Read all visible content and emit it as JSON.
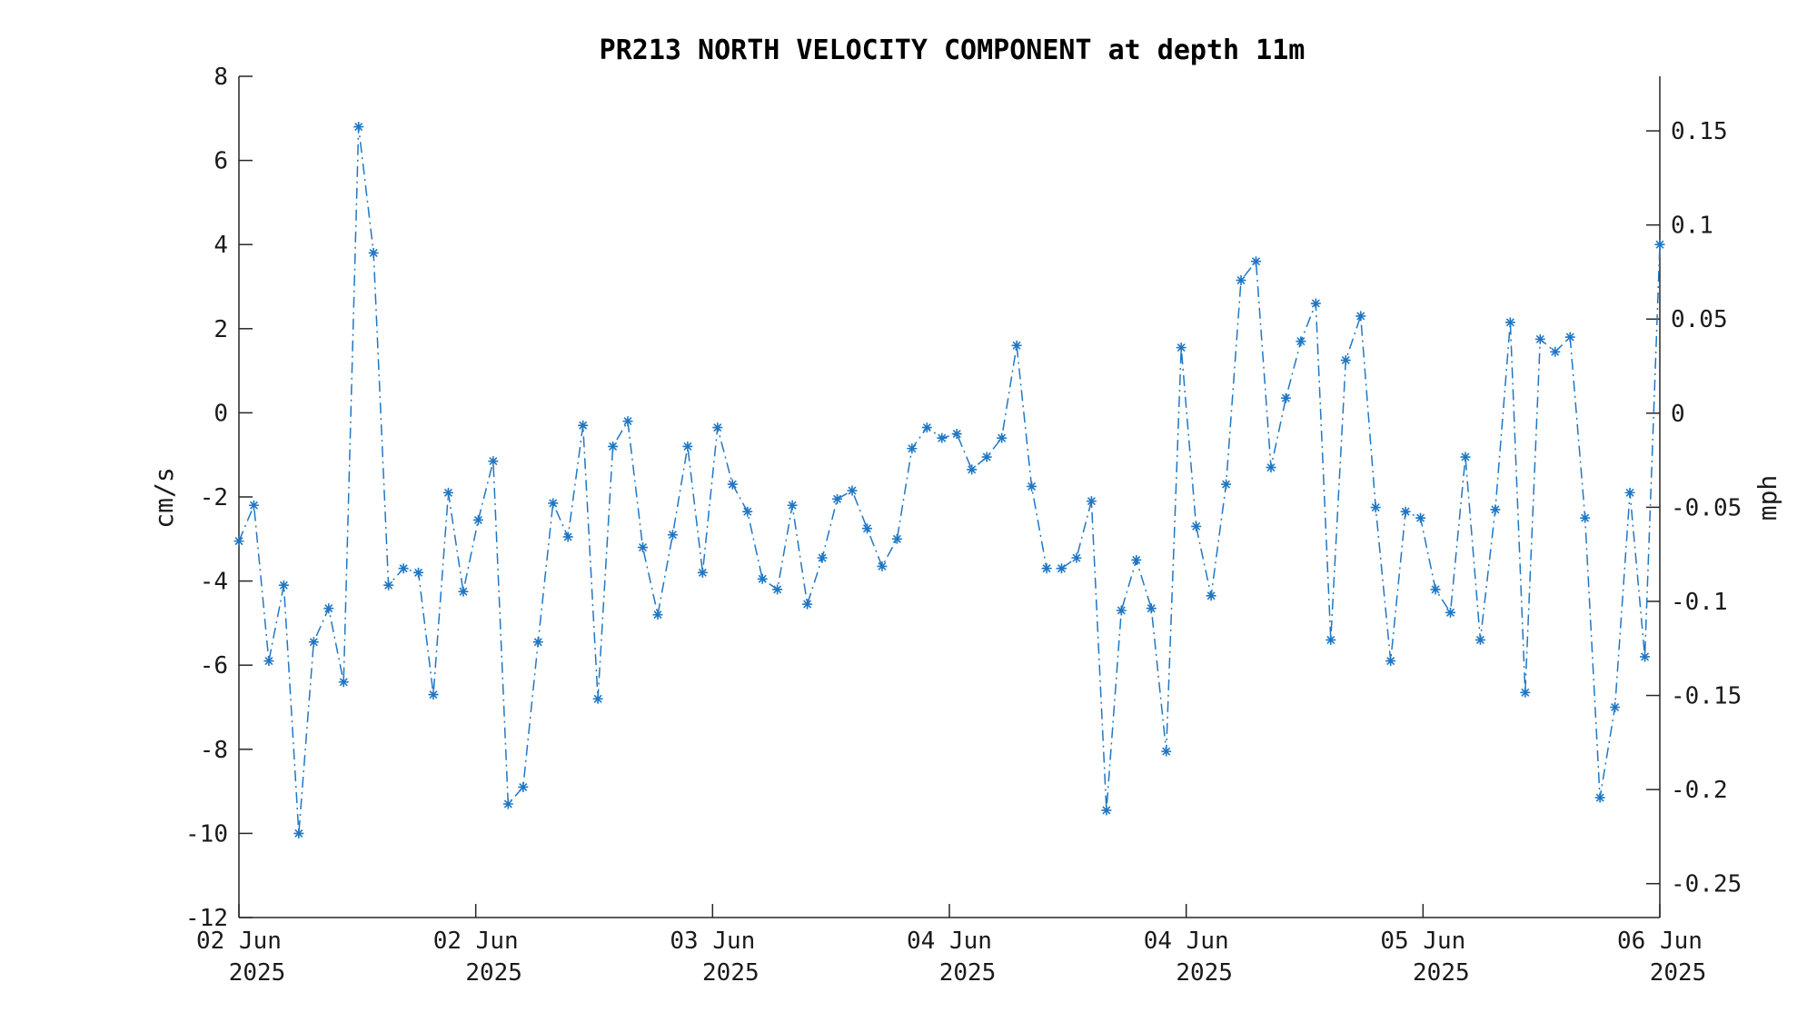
{
  "chart_data": {
    "type": "line",
    "title": "PR213 NORTH VELOCITY COMPONENT at depth 11m",
    "ylabel": "cm/s",
    "ylabel_right": "mph",
    "ylim": [
      -12,
      8
    ],
    "yticks": [
      "8",
      "6",
      "4",
      "2",
      "0",
      "-2",
      "-4",
      "-6",
      "-8",
      "-10",
      "-12"
    ],
    "ytick_values": [
      8,
      6,
      4,
      2,
      0,
      -2,
      -4,
      -6,
      -8,
      -10,
      -12
    ],
    "ylim_right": [
      -0.268,
      0.179
    ],
    "yticks_right": [
      "0.15",
      "0.1",
      "0.05",
      "0",
      "-0.05",
      "-0.1",
      "-0.15",
      "-0.2",
      "-0.25"
    ],
    "ytick_values_right": [
      0.15,
      0.1,
      0.05,
      0,
      -0.05,
      -0.1,
      -0.15,
      -0.2,
      -0.25
    ],
    "xticks": [
      {
        "line1": "02 Jun",
        "line2": "2025"
      },
      {
        "line1": "02 Jun",
        "line2": "2025"
      },
      {
        "line1": "03 Jun",
        "line2": "2025"
      },
      {
        "line1": "04 Jun",
        "line2": "2025"
      },
      {
        "line1": "04 Jun",
        "line2": "2025"
      },
      {
        "line1": "05 Jun",
        "line2": "2025"
      },
      {
        "line1": "06 Jun",
        "line2": "2025"
      }
    ],
    "grid": false,
    "series": [
      {
        "color": "#1f77c4",
        "line_style": "dash-dot",
        "marker": "asterisk",
        "values": [
          -3.05,
          -2.2,
          -5.9,
          -4.1,
          -10.0,
          -5.45,
          -4.65,
          -6.4,
          6.8,
          3.8,
          -4.1,
          -3.7,
          -3.8,
          -6.7,
          -1.9,
          -4.25,
          -2.55,
          -1.15,
          -9.3,
          -8.9,
          -5.45,
          -2.15,
          -2.95,
          -0.3,
          -6.8,
          -0.8,
          -0.2,
          -3.2,
          -4.8,
          -2.9,
          -0.8,
          -3.8,
          -0.35,
          -1.7,
          -2.35,
          -3.95,
          -4.2,
          -2.2,
          -4.55,
          -3.45,
          -2.05,
          -1.85,
          -2.75,
          -3.65,
          -3.0,
          -0.85,
          -0.35,
          -0.6,
          -0.5,
          -1.35,
          -1.05,
          -0.6,
          1.6,
          -1.75,
          -3.7,
          -3.7,
          -3.45,
          -2.1,
          -9.45,
          -4.7,
          -3.5,
          -4.65,
          -8.05,
          1.55,
          -2.7,
          -4.35,
          -1.7,
          3.15,
          3.6,
          -1.3,
          0.35,
          1.7,
          2.6,
          -5.4,
          1.25,
          2.3,
          -2.25,
          -5.9,
          -2.35,
          -2.5,
          -4.2,
          -4.75,
          -1.05,
          -5.4,
          -2.3,
          2.15,
          -6.65,
          1.75,
          1.45,
          1.8,
          -2.5,
          -9.15,
          -7.0,
          -1.9,
          -5.8,
          4.0
        ]
      }
    ]
  }
}
